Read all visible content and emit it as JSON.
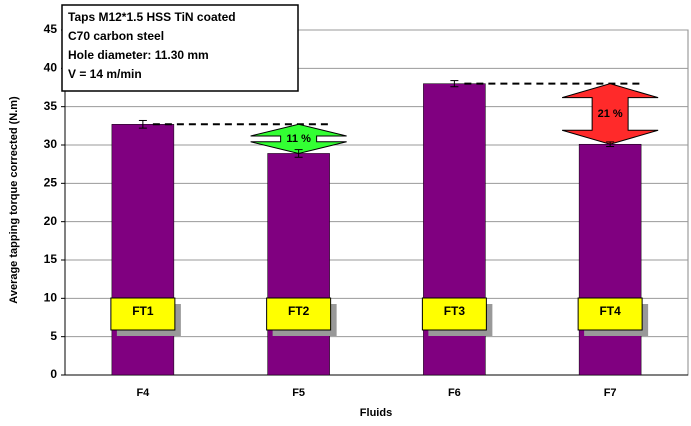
{
  "chart_data": {
    "type": "bar",
    "info_box": [
      "Taps M12*1.5 HSS TiN coated",
      "C70 carbon steel",
      "Hole diameter: 11.30 mm",
      "V = 14 m/min"
    ],
    "y_label": "Average tapping torque corrected (N.m)",
    "x_label": "Fluids",
    "categories": [
      "F4",
      "F5",
      "F6",
      "F7"
    ],
    "values": [
      32.7,
      28.9,
      38.0,
      30.1
    ],
    "errors": [
      0.5,
      0.5,
      0.4,
      0.3
    ],
    "color": "#800080",
    "bar_labels": [
      "FT1",
      "FT2",
      "FT3",
      "FT4"
    ],
    "arrows": [
      {
        "label": "11 %",
        "color": "#33ff33"
      },
      {
        "label": "21 %",
        "color": "#ff2a2a"
      }
    ],
    "ylim": [
      0,
      45
    ],
    "yticks": [
      0,
      5,
      10,
      15,
      20,
      25,
      30,
      35,
      40,
      45
    ],
    "grid": true
  }
}
